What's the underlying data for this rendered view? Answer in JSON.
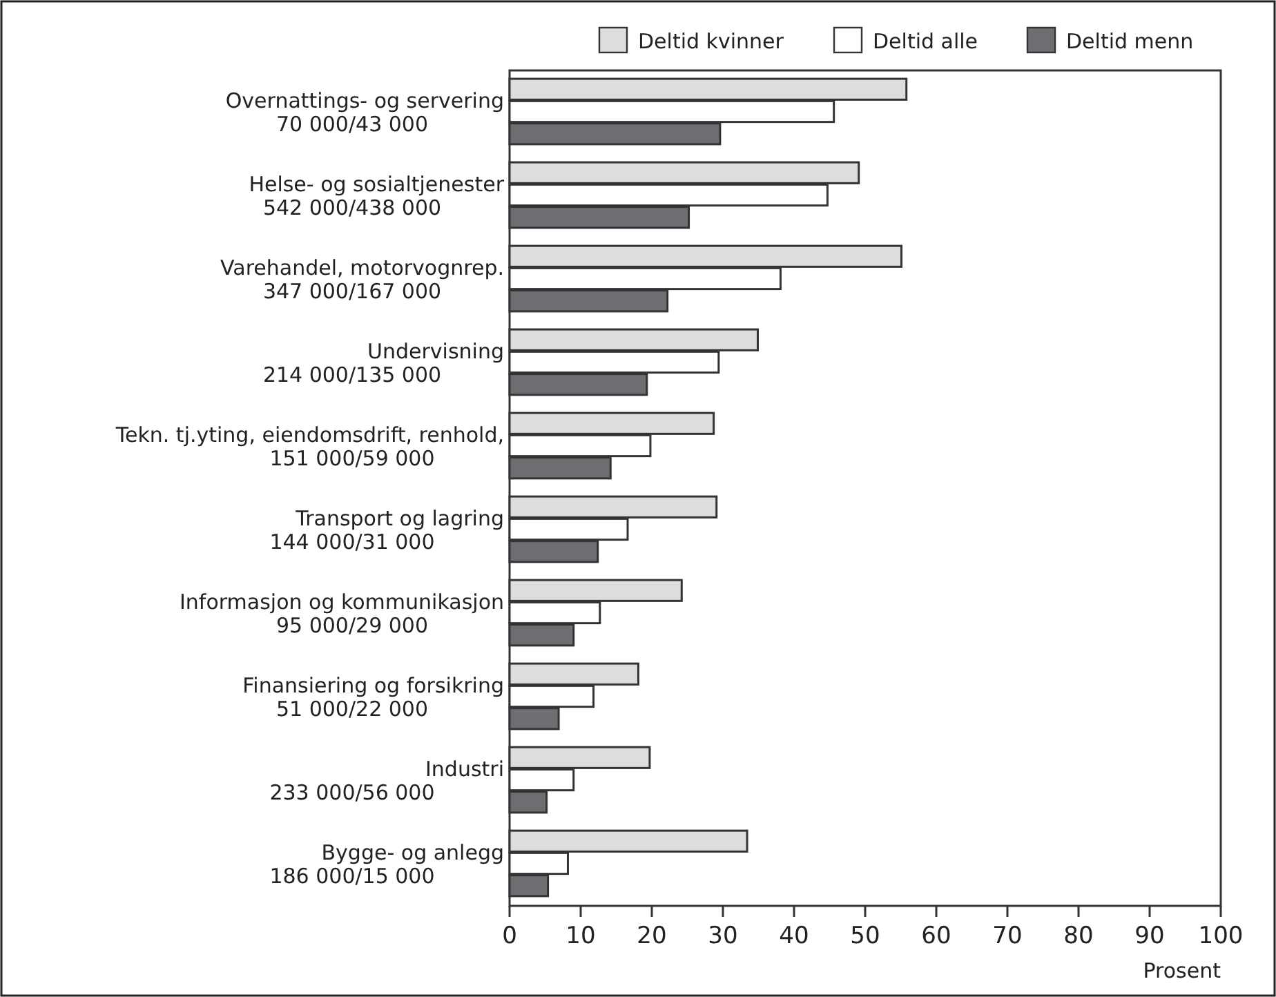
{
  "chart_data": {
    "type": "bar",
    "orientation": "horizontal",
    "xlabel": "Prosent",
    "categories": [
      "Overnattings- og servering\n70 000/43 000",
      "Helse- og sosialtjenester\n542 000/438 000",
      "Varehandel, motorvognrep.\n347 000/167 000",
      "Undervisning\n214 000/135 000",
      "Tekn. tj.yting, eiendomsdrift, renhold,\n151 000/59 000",
      "Transport og lagring\n144 000/31 000",
      "Informasjon og kommunikasjon\n95 000/29 000",
      "Finansiering og forsikring\n51 000/22 000",
      "Industri\n233 000/56 000",
      "Bygge- og anlegg\n186 000/15 000"
    ],
    "series": [
      {
        "name": "Deltid kvinner",
        "color": "#dcddde",
        "values": [
          55.8,
          49.1,
          55.1,
          34.9,
          28.7,
          29.1,
          24.2,
          18.1,
          19.7,
          33.4
        ]
      },
      {
        "name": "Deltid alle",
        "color": "#ffffff",
        "values": [
          45.6,
          44.7,
          38.1,
          29.4,
          19.8,
          16.6,
          12.7,
          11.8,
          9.0,
          8.2
        ]
      },
      {
        "name": "Deltid menn",
        "color": "#6d6e71",
        "values": [
          29.6,
          25.2,
          22.2,
          19.3,
          14.2,
          12.4,
          9.0,
          6.9,
          5.2,
          5.4
        ]
      }
    ],
    "xlim": [
      0,
      100
    ],
    "xticks": [
      0,
      10,
      20,
      30,
      40,
      50,
      60,
      70,
      80,
      90,
      100
    ],
    "grid": false,
    "legend": "top right"
  }
}
